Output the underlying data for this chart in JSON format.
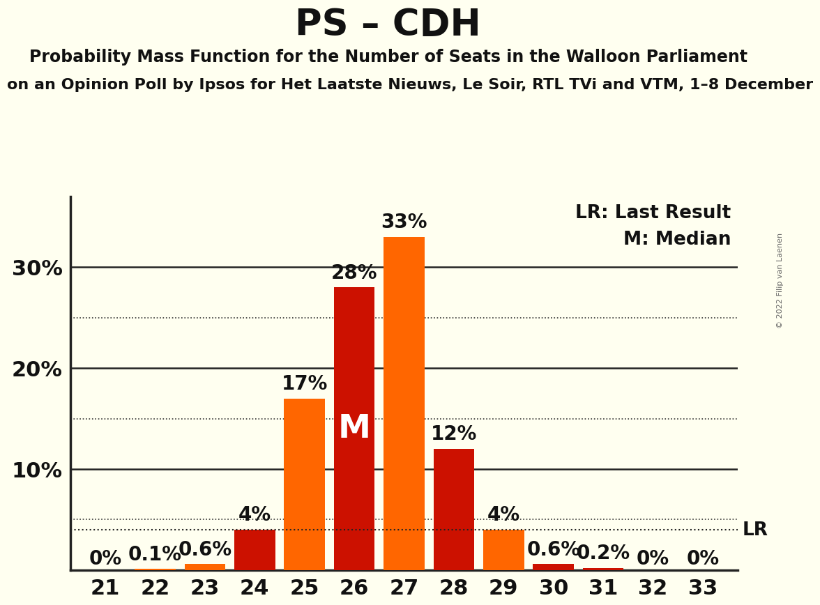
{
  "title": "PS – CDH",
  "subtitle1": "Probability Mass Function for the Number of Seats in the Walloon Parliament",
  "subtitle2": "on an Opinion Poll by Ipsos for Het Laatste Nieuws, Le Soir, RTL TVi and VTM, 1–8 December",
  "copyright": "© 2022 Filip van Laenen",
  "seats": [
    21,
    22,
    23,
    24,
    25,
    26,
    27,
    28,
    29,
    30,
    31,
    32,
    33
  ],
  "probabilities": [
    0.0,
    0.1,
    0.6,
    4.0,
    17.0,
    28.0,
    33.0,
    12.0,
    4.0,
    0.6,
    0.2,
    0.0,
    0.0
  ],
  "labels": [
    "0%",
    "0.1%",
    "0.6%",
    "4%",
    "17%",
    "28%",
    "33%",
    "12%",
    "4%",
    "0.6%",
    "0.2%",
    "0%",
    "0%"
  ],
  "bar_colors": [
    "#CC1100",
    "#FF6600",
    "#FF6600",
    "#CC1100",
    "#FF6600",
    "#CC1100",
    "#FF6600",
    "#CC1100",
    "#FF6600",
    "#CC1100",
    "#CC1100",
    "#FF6600",
    "#CC1100"
  ],
  "background_color": "#FFFFF0",
  "median_seat": 26,
  "median_label": "M",
  "lr_value": 4.0,
  "solid_gridlines": [
    10,
    20,
    30
  ],
  "dotted_gridlines": [
    5,
    15,
    25
  ],
  "title_fontsize": 38,
  "subtitle1_fontsize": 17,
  "subtitle2_fontsize": 16,
  "tick_fontsize": 22,
  "bar_label_fontsize": 20,
  "legend_fontsize": 19,
  "median_fontsize": 34
}
